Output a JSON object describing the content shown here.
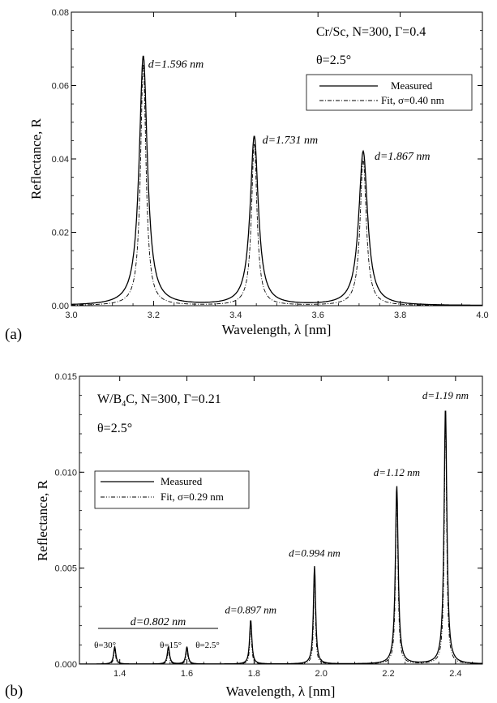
{
  "chart_data": [
    {
      "panel_label": "(a)",
      "type": "line",
      "xlabel": "Wavelength, λ [nm]",
      "ylabel": "Reflectance, R",
      "xlim": [
        3.0,
        4.0
      ],
      "ylim": [
        0.0,
        0.08
      ],
      "x_ticks": [
        "3.0",
        "3.2",
        "3.4",
        "3.6",
        "3.8",
        "4.0"
      ],
      "y_ticks": [
        "0.00",
        "0.02",
        "0.04",
        "0.06",
        "0.08"
      ],
      "info_lines": [
        "Cr/Sc, N=300, Γ=0.4",
        "θ=2.5°"
      ],
      "legend": {
        "measured": "Measured",
        "fit": "Fit, σ=0.40 nm",
        "position": "top-right"
      },
      "peaks": [
        {
          "label": "d=1.596 nm",
          "x": 3.175,
          "measured": 0.068,
          "fit": 0.066,
          "w_meas": 0.012,
          "w_fit": 0.008
        },
        {
          "label": "d=1.731 nm",
          "x": 3.445,
          "measured": 0.046,
          "fit": 0.044,
          "w_meas": 0.012,
          "w_fit": 0.008
        },
        {
          "label": "d=1.867 nm",
          "x": 3.71,
          "measured": 0.042,
          "fit": 0.04,
          "w_meas": 0.013,
          "w_fit": 0.009
        }
      ],
      "series": [
        {
          "name": "Measured",
          "style": "solid"
        },
        {
          "name": "Fit, σ=0.40 nm",
          "style": "dash-dot"
        }
      ]
    },
    {
      "panel_label": "(b)",
      "type": "line",
      "xlabel": "Wavelength, λ [nm]",
      "ylabel": "Reflectance, R",
      "xlim": [
        1.28,
        2.48
      ],
      "ylim": [
        0.0,
        0.015
      ],
      "x_ticks": [
        "1.4",
        "1.6",
        "1.8",
        "2.0",
        "2.2",
        "2.4"
      ],
      "x_tick_values": [
        1.4,
        1.6,
        1.8,
        2.0,
        2.2,
        2.4
      ],
      "y_ticks": [
        "0.000",
        "0.005",
        "0.010",
        "0.015"
      ],
      "info_lines": [
        "W/B4C, N=300, Γ=0.21",
        "θ=2.5°"
      ],
      "legend": {
        "measured": "Measured",
        "fit": "Fit, σ=0.29 nm",
        "position": "top-left"
      },
      "group_label": "d=0.802 nm",
      "angle_labels": [
        "θ=30°",
        "θ=15°",
        "θ=2.5°"
      ],
      "peaks": [
        {
          "label": "",
          "x": 1.385,
          "measured": 0.0009,
          "fit": 0.0008,
          "w_meas": 0.004,
          "w_fit": 0.003
        },
        {
          "label": "",
          "x": 1.545,
          "measured": 0.0009,
          "fit": 0.0008,
          "w_meas": 0.004,
          "w_fit": 0.003
        },
        {
          "label": "",
          "x": 1.6,
          "measured": 0.0009,
          "fit": 0.0008,
          "w_meas": 0.004,
          "w_fit": 0.003
        },
        {
          "label": "d=0.897 nm",
          "x": 1.79,
          "measured": 0.0023,
          "fit": 0.0022,
          "w_meas": 0.004,
          "w_fit": 0.003
        },
        {
          "label": "d=0.994 nm",
          "x": 1.98,
          "measured": 0.0051,
          "fit": 0.005,
          "w_meas": 0.004,
          "w_fit": 0.003
        },
        {
          "label": "d=1.12 nm",
          "x": 2.225,
          "measured": 0.0093,
          "fit": 0.0092,
          "w_meas": 0.005,
          "w_fit": 0.004
        },
        {
          "label": "d=1.19 nm",
          "x": 2.37,
          "measured": 0.0134,
          "fit": 0.0133,
          "w_meas": 0.005,
          "w_fit": 0.004
        }
      ],
      "series": [
        {
          "name": "Measured",
          "style": "solid"
        },
        {
          "name": "Fit, σ=0.29 nm",
          "style": "dash-dot-dot"
        }
      ]
    }
  ]
}
